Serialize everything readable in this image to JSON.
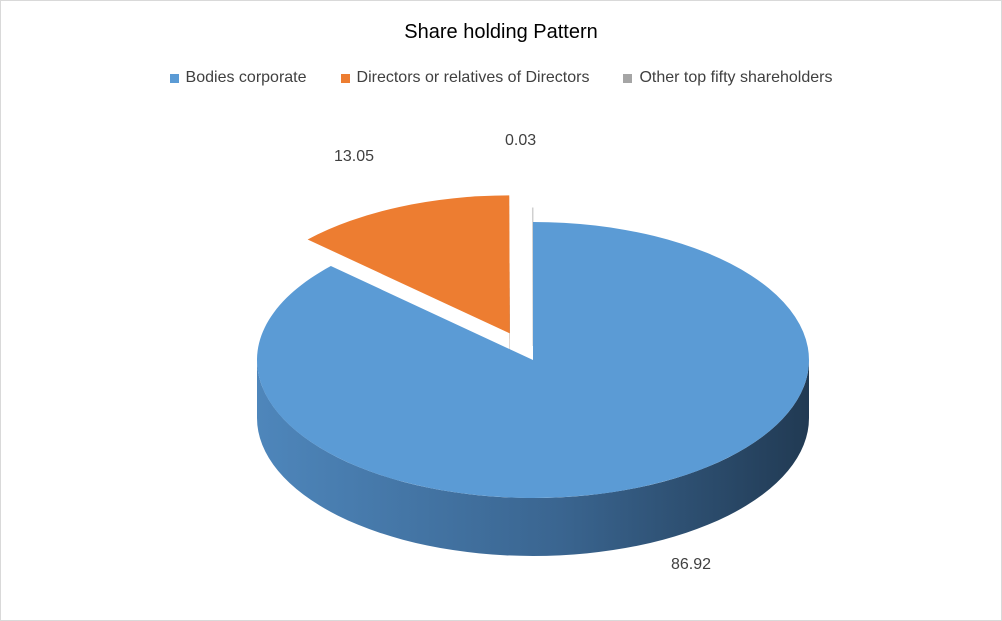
{
  "chart_data": {
    "type": "pie",
    "title": "Share holding Pattern",
    "legend_position": "top",
    "categories": [
      "Bodies corporate",
      "Directors or relatives of Directors",
      "Other top fifty shareholders"
    ],
    "values": [
      86.92,
      13.05,
      0.03
    ],
    "data_labels": [
      "86.92",
      "13.05",
      "0.03"
    ],
    "colors": [
      "#5b9bd5",
      "#ed7d31",
      "#a5a5a5"
    ],
    "style": "3d-exploded"
  }
}
